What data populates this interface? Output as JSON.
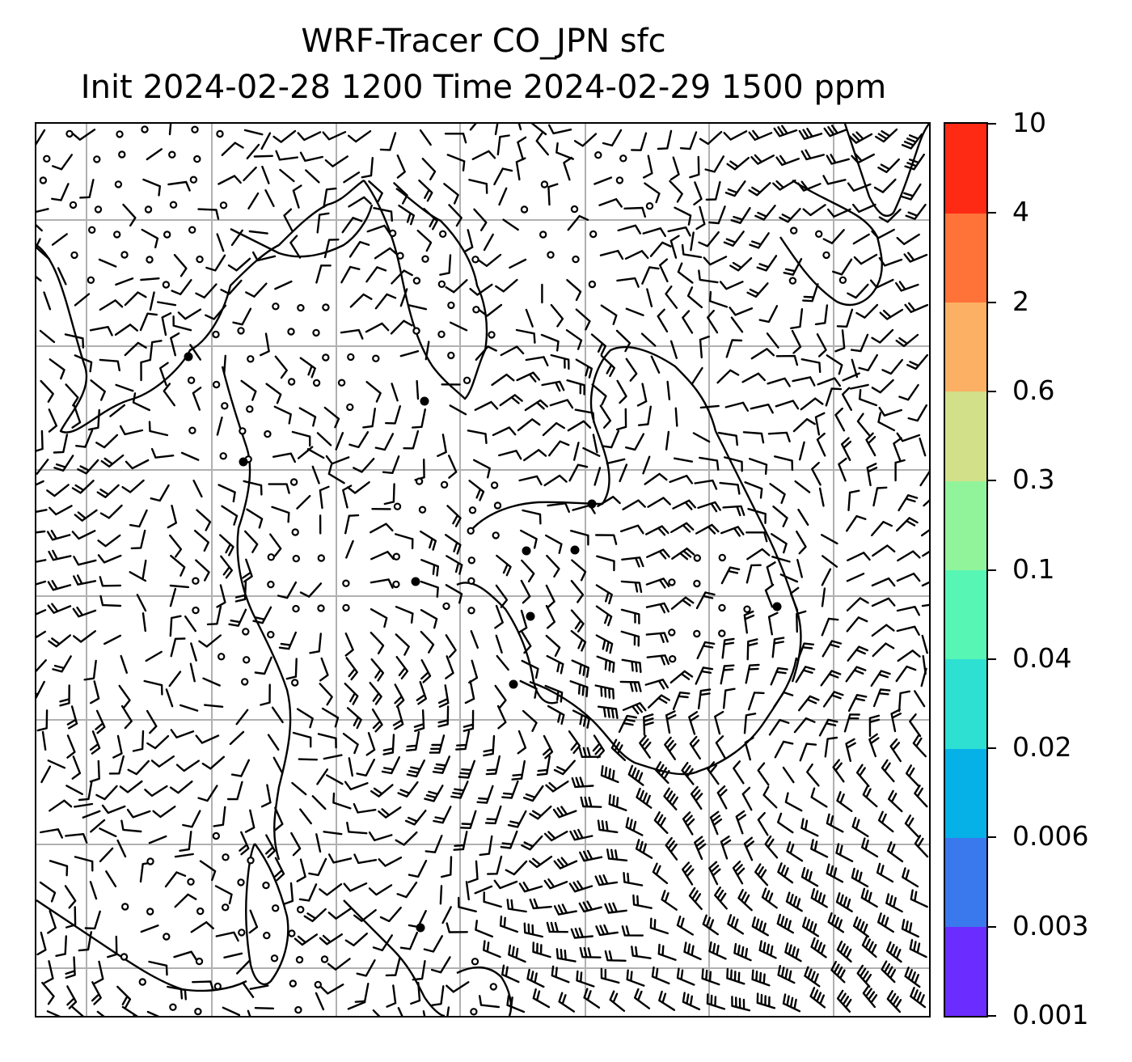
{
  "title": {
    "line1": "WRF-Tracer CO_JPN sfc",
    "line2": "Init 2024-02-28 1200 Time 2024-02-29 1500 ppm"
  },
  "map": {
    "projection": "Lambert conformal (regional, East Asia / Japan)",
    "gridlines": true,
    "wind_barbs": true,
    "coastlines": true,
    "barb_color": "#000000",
    "coast_color": "#000000",
    "grid_color": "#b0b0b0"
  },
  "colorbar": {
    "orientation": "vertical",
    "levels": [
      "0.001",
      "0.003",
      "0.006",
      "0.02",
      "0.04",
      "0.1",
      "0.3",
      "0.6",
      "2",
      "4",
      "10"
    ],
    "colors": [
      "#6a2cff",
      "#3a78ee",
      "#06b1e8",
      "#2ee0d2",
      "#58f6b4",
      "#92f49a",
      "#d2e08a",
      "#fcb064",
      "#ff7238",
      "#ff2a14"
    ]
  }
}
